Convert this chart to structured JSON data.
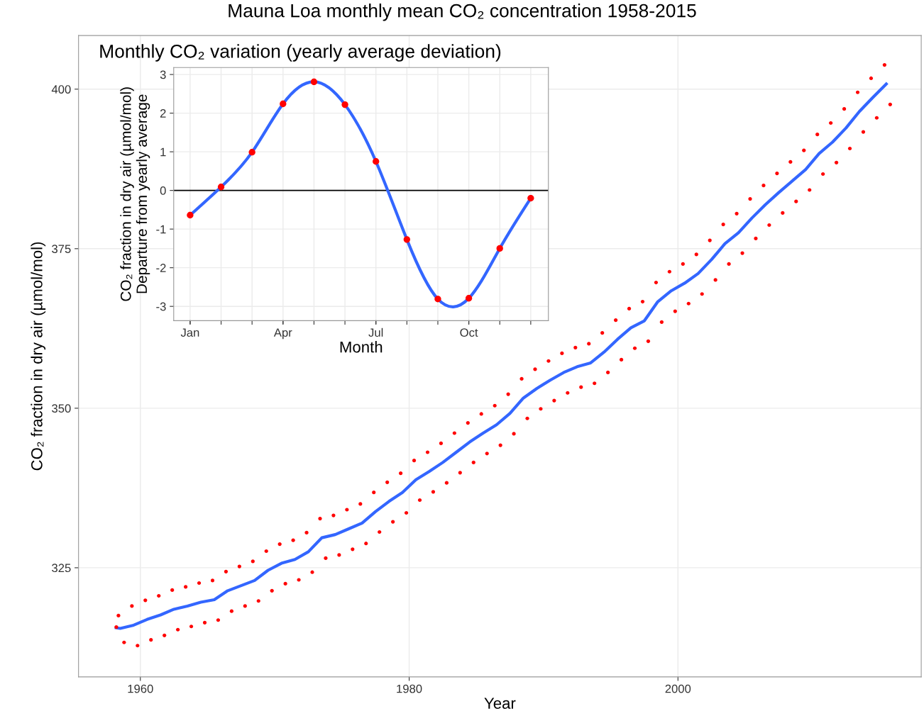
{
  "chart_data": [
    {
      "type": "scatter",
      "title": "Mauna Loa monthly mean CO₂ concentration 1958-2015",
      "xlabel": "Year",
      "ylabel": "CO₂ fraction in dry air (µmol/mol)",
      "xlim": [
        1955.4,
        2018.1
      ],
      "ylim": [
        307.9,
        408.4
      ],
      "xticks": [
        1960,
        1980,
        2000
      ],
      "yticks": [
        325,
        350,
        375,
        400
      ],
      "grid": true,
      "series": [
        {
          "marker": "circle",
          "color": "#ff0000",
          "x": [
            1958.21,
            1958.37,
            1958.79,
            1959.37,
            1959.79,
            1960.37,
            1960.79,
            1961.37,
            1961.79,
            1962.37,
            1962.79,
            1963.37,
            1963.79,
            1964.37,
            1964.79,
            1965.37,
            1965.79,
            1966.37,
            1966.79,
            1967.37,
            1967.79,
            1968.37,
            1968.79,
            1969.37,
            1969.79,
            1970.37,
            1970.79,
            1971.37,
            1971.79,
            1972.37,
            1972.79,
            1973.37,
            1973.79,
            1974.37,
            1974.79,
            1975.37,
            1975.79,
            1976.37,
            1976.79,
            1977.37,
            1977.79,
            1978.37,
            1978.79,
            1979.37,
            1979.79,
            1980.37,
            1980.79,
            1981.37,
            1981.79,
            1982.37,
            1982.79,
            1983.37,
            1983.79,
            1984.37,
            1984.79,
            1985.37,
            1985.79,
            1986.37,
            1986.79,
            1987.37,
            1987.79,
            1988.37,
            1988.79,
            1989.37,
            1989.79,
            1990.37,
            1990.79,
            1991.37,
            1991.79,
            1992.37,
            1992.79,
            1993.37,
            1993.79,
            1994.37,
            1994.79,
            1995.37,
            1995.79,
            1996.37,
            1996.79,
            1997.37,
            1997.79,
            1998.37,
            1998.79,
            1999.37,
            1999.79,
            2000.37,
            2000.79,
            2001.37,
            2001.79,
            2002.37,
            2002.79,
            2003.37,
            2003.79,
            2004.37,
            2004.79,
            2005.37,
            2005.79,
            2006.37,
            2006.79,
            2007.37,
            2007.79,
            2008.37,
            2008.79,
            2009.37,
            2009.79,
            2010.37,
            2010.79,
            2011.37,
            2011.79,
            2012.37,
            2012.79,
            2013.37,
            2013.79,
            2014.37,
            2014.79,
            2015.37,
            2015.79
          ],
          "values": [
            315.7,
            317.5,
            313.3,
            319.0,
            312.8,
            319.9,
            313.7,
            320.6,
            314.4,
            321.5,
            315.3,
            322.0,
            315.8,
            322.6,
            316.4,
            323.0,
            316.8,
            324.4,
            318.2,
            325.2,
            319.0,
            326.0,
            319.8,
            327.6,
            321.4,
            328.7,
            322.5,
            329.3,
            323.1,
            330.5,
            324.3,
            332.7,
            326.5,
            333.2,
            327.0,
            334.1,
            327.9,
            335.0,
            328.8,
            336.8,
            330.6,
            338.4,
            332.2,
            339.8,
            333.6,
            341.8,
            335.6,
            343.1,
            336.9,
            344.5,
            338.3,
            346.1,
            339.9,
            347.7,
            341.5,
            349.1,
            342.9,
            350.4,
            344.2,
            352.2,
            346.0,
            354.6,
            348.4,
            356.1,
            349.9,
            357.4,
            351.2,
            358.6,
            352.4,
            359.5,
            353.3,
            360.1,
            353.9,
            361.8,
            355.6,
            363.8,
            357.6,
            365.6,
            359.4,
            366.7,
            360.5,
            369.7,
            363.5,
            371.4,
            365.2,
            372.6,
            366.4,
            374.1,
            367.9,
            376.3,
            370.1,
            378.8,
            372.6,
            380.5,
            374.3,
            382.8,
            376.6,
            384.9,
            378.7,
            386.8,
            380.6,
            388.6,
            382.4,
            390.4,
            384.2,
            392.9,
            386.7,
            394.7,
            388.5,
            396.9,
            390.7,
            399.5,
            393.3,
            401.7,
            395.5,
            403.8,
            397.6
          ]
        },
        {
          "type": "line",
          "color": "#3366ff",
          "x": [
            1958.2,
            1958.5,
            1959.5,
            1960.5,
            1961.5,
            1962.5,
            1963.5,
            1964.5,
            1965.5,
            1966.5,
            1967.5,
            1968.5,
            1969.5,
            1970.5,
            1971.5,
            1972.5,
            1973.5,
            1974.5,
            1975.5,
            1976.5,
            1977.5,
            1978.5,
            1979.5,
            1980.5,
            1981.5,
            1982.5,
            1983.5,
            1984.5,
            1985.5,
            1986.5,
            1987.5,
            1988.5,
            1989.5,
            1990.5,
            1991.5,
            1992.5,
            1993.5,
            1994.5,
            1995.5,
            1996.5,
            1997.5,
            1998.5,
            1999.5,
            2000.5,
            2001.5,
            2002.5,
            2003.5,
            2004.5,
            2005.5,
            2006.5,
            2007.5,
            2008.5,
            2009.5,
            2010.5,
            2011.5,
            2012.5,
            2013.5,
            2014.5,
            2015.5
          ],
          "values": [
            315.6,
            315.5,
            316.0,
            316.9,
            317.6,
            318.5,
            319.0,
            319.6,
            320.0,
            321.4,
            322.2,
            323.0,
            324.6,
            325.7,
            326.3,
            327.5,
            329.7,
            330.2,
            331.1,
            332.0,
            333.8,
            335.4,
            336.8,
            338.8,
            340.1,
            341.5,
            343.1,
            344.7,
            346.1,
            347.4,
            349.2,
            351.6,
            353.1,
            354.4,
            355.6,
            356.5,
            357.1,
            358.8,
            360.8,
            362.6,
            363.7,
            366.7,
            368.4,
            369.6,
            371.1,
            373.3,
            375.8,
            377.5,
            379.8,
            381.9,
            383.8,
            385.6,
            387.4,
            389.9,
            391.7,
            393.9,
            396.5,
            398.7,
            400.8
          ]
        }
      ]
    },
    {
      "type": "scatter",
      "title": "Monthly CO₂ variation (yearly average deviation)",
      "xlabel": "Month",
      "ylabel": "CO₂ fraction in dry air (µmol/mol)\nDeparture from yearly average",
      "categories": [
        "Jan",
        null,
        null,
        "Apr",
        null,
        null,
        "Jul",
        null,
        null,
        "Oct",
        null,
        null
      ],
      "ylim": [
        -3.37,
        3.18
      ],
      "yticks": [
        -3,
        -2,
        -1,
        0,
        1,
        2,
        3
      ],
      "grid": true,
      "ref_lines": [
        {
          "axis": "y",
          "value": 0,
          "color": "#000000"
        }
      ],
      "series": [
        {
          "type": "line",
          "color": "#3366ff",
          "values": [
            -0.64,
            0.09,
            0.99,
            2.24,
            2.81,
            2.22,
            0.75,
            -1.27,
            -2.81,
            -2.79,
            -1.5,
            -0.2
          ]
        },
        {
          "marker": "circle",
          "color": "#ff0000",
          "values": [
            -0.64,
            0.09,
            0.99,
            2.24,
            2.81,
            2.22,
            0.75,
            -1.27,
            -2.81,
            -2.79,
            -1.5,
            -0.2
          ]
        }
      ]
    }
  ]
}
